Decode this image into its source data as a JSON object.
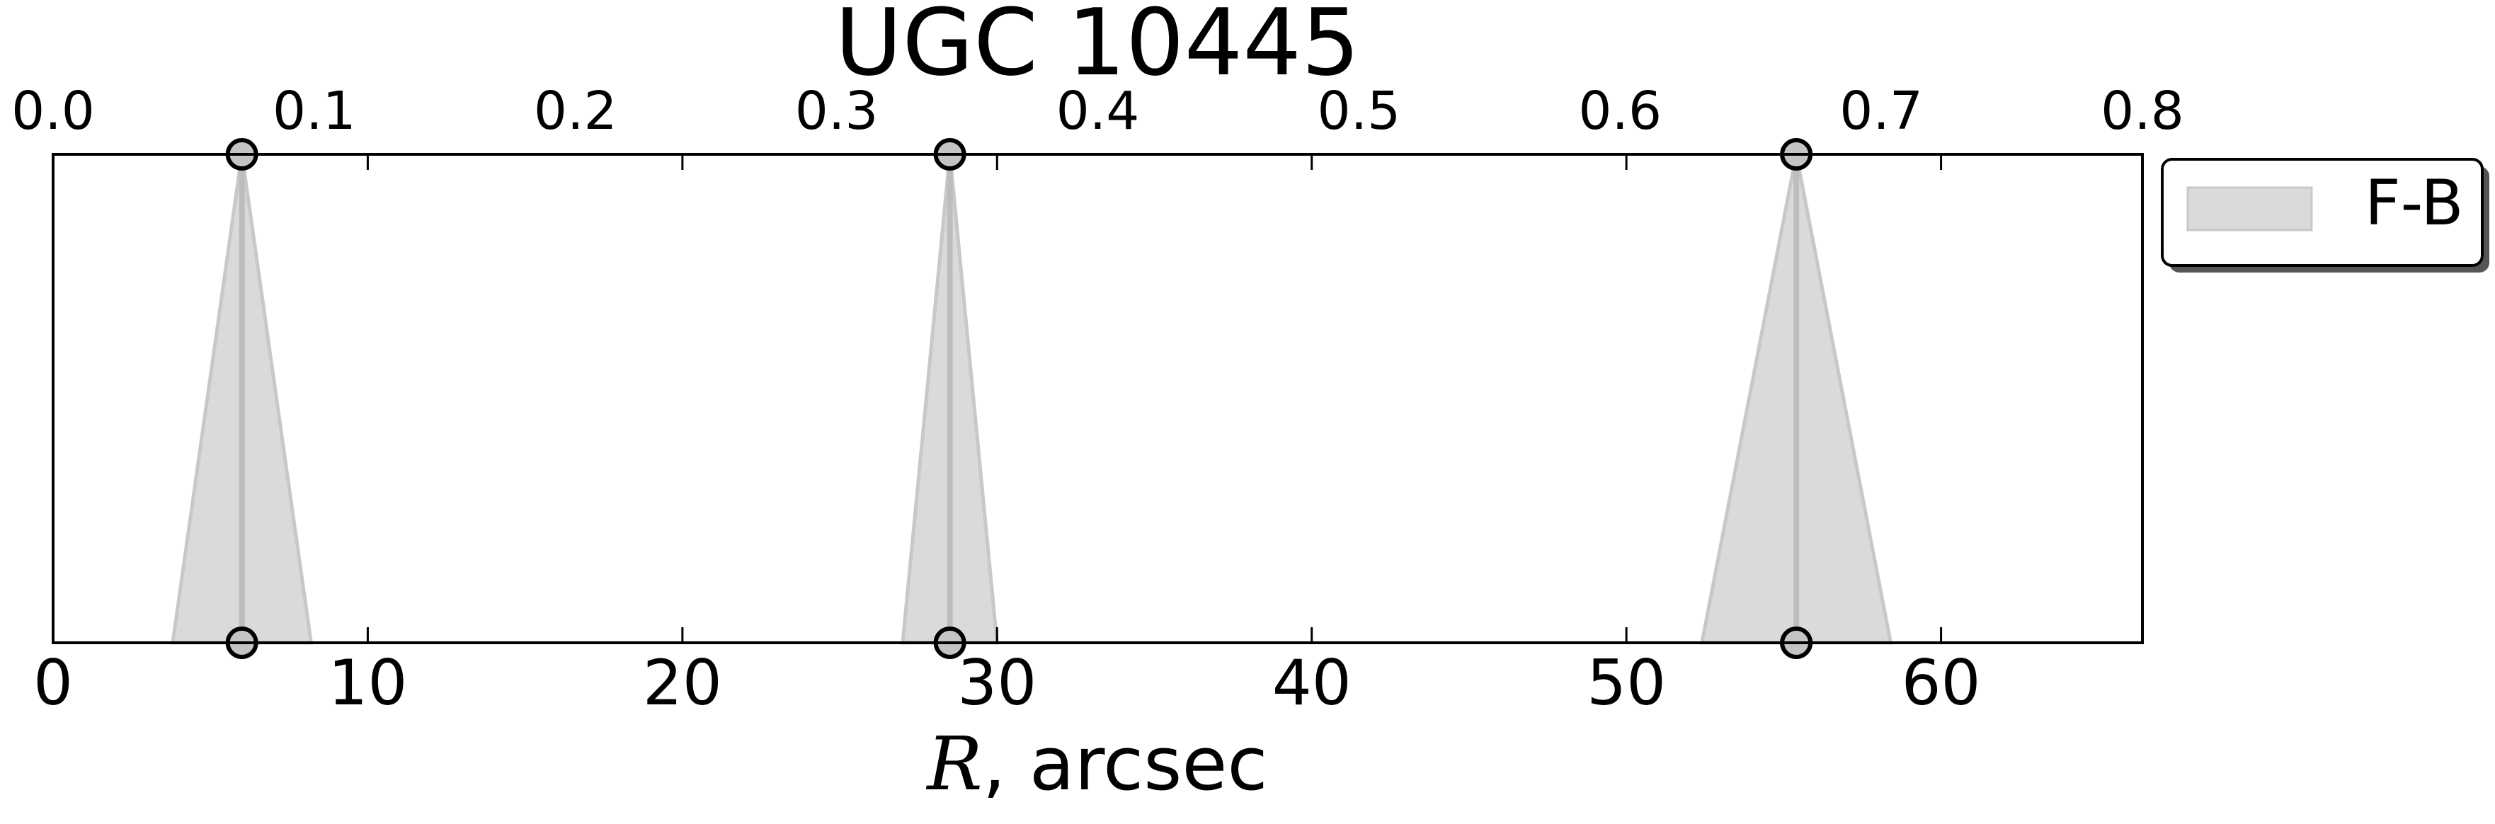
{
  "chart_data": {
    "type": "area",
    "title": "UGC 10445",
    "xlabel_italic": "R",
    "xlabel_rest": ", arcsec",
    "xlim": [
      0,
      66.4
    ],
    "xticks": [
      0,
      10,
      20,
      30,
      40,
      50,
      60
    ],
    "top_xlim": [
      0.0,
      0.8
    ],
    "top_xticks": [
      "0.0",
      "0.1",
      "0.2",
      "0.3",
      "0.4",
      "0.5",
      "0.6",
      "0.7",
      "0.8"
    ],
    "legend": {
      "label": "F-B",
      "placement": "outside-top-right"
    },
    "series": [
      {
        "name": "F-B",
        "color": "#c8c8c8",
        "fill": "#dadada",
        "marker_edge": "#000000",
        "bars": [
          {
            "x": 6.0,
            "xmin": 3.8,
            "xmax": 8.2
          },
          {
            "x": 28.5,
            "xmin": 27.0,
            "xmax": 30.0
          },
          {
            "x": 55.4,
            "xmin": 52.4,
            "xmax": 58.4
          }
        ]
      }
    ]
  }
}
